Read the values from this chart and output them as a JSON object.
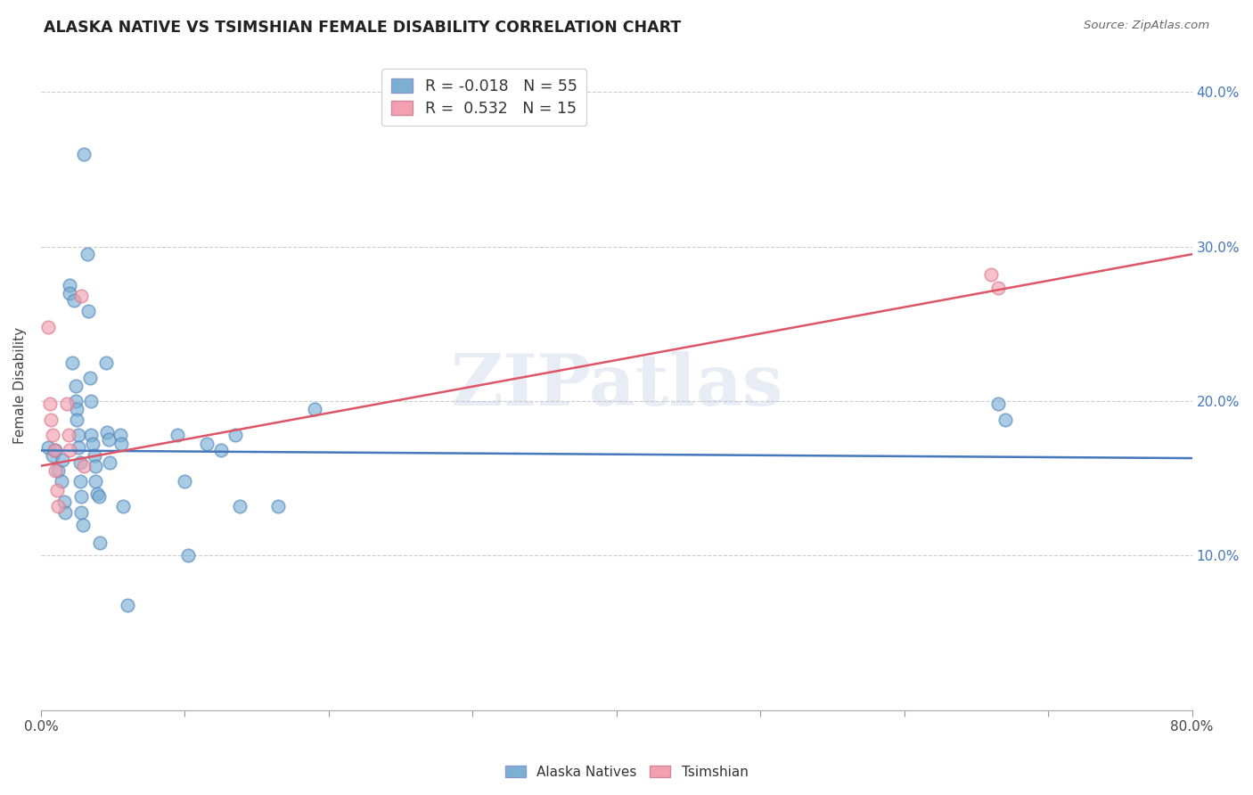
{
  "title": "ALASKA NATIVE VS TSIMSHIAN FEMALE DISABILITY CORRELATION CHART",
  "source": "Source: ZipAtlas.com",
  "ylabel": "Female Disability",
  "x_min": 0.0,
  "x_max": 0.8,
  "y_min": 0.0,
  "y_max": 0.42,
  "watermark": "ZIPatlas",
  "blue_color": "#7BAFD4",
  "pink_color": "#F4A0B0",
  "blue_edge_color": "#5588BB",
  "pink_edge_color": "#DD7788",
  "blue_line_color": "#4477BB",
  "pink_line_color": "#DD5566",
  "blue_scatter": [
    [
      0.005,
      0.17
    ],
    [
      0.008,
      0.165
    ],
    [
      0.01,
      0.168
    ],
    [
      0.012,
      0.155
    ],
    [
      0.014,
      0.148
    ],
    [
      0.015,
      0.162
    ],
    [
      0.016,
      0.135
    ],
    [
      0.017,
      0.128
    ],
    [
      0.02,
      0.275
    ],
    [
      0.02,
      0.27
    ],
    [
      0.022,
      0.225
    ],
    [
      0.023,
      0.265
    ],
    [
      0.024,
      0.21
    ],
    [
      0.024,
      0.2
    ],
    [
      0.025,
      0.195
    ],
    [
      0.025,
      0.188
    ],
    [
      0.026,
      0.178
    ],
    [
      0.026,
      0.17
    ],
    [
      0.027,
      0.16
    ],
    [
      0.027,
      0.148
    ],
    [
      0.028,
      0.138
    ],
    [
      0.028,
      0.128
    ],
    [
      0.029,
      0.12
    ],
    [
      0.03,
      0.36
    ],
    [
      0.032,
      0.295
    ],
    [
      0.033,
      0.258
    ],
    [
      0.034,
      0.215
    ],
    [
      0.035,
      0.2
    ],
    [
      0.035,
      0.178
    ],
    [
      0.036,
      0.172
    ],
    [
      0.037,
      0.165
    ],
    [
      0.038,
      0.158
    ],
    [
      0.038,
      0.148
    ],
    [
      0.039,
      0.14
    ],
    [
      0.04,
      0.138
    ],
    [
      0.041,
      0.108
    ],
    [
      0.045,
      0.225
    ],
    [
      0.046,
      0.18
    ],
    [
      0.047,
      0.175
    ],
    [
      0.048,
      0.16
    ],
    [
      0.055,
      0.178
    ],
    [
      0.056,
      0.172
    ],
    [
      0.057,
      0.132
    ],
    [
      0.06,
      0.068
    ],
    [
      0.095,
      0.178
    ],
    [
      0.1,
      0.148
    ],
    [
      0.102,
      0.1
    ],
    [
      0.115,
      0.172
    ],
    [
      0.125,
      0.168
    ],
    [
      0.135,
      0.178
    ],
    [
      0.138,
      0.132
    ],
    [
      0.165,
      0.132
    ],
    [
      0.19,
      0.195
    ],
    [
      0.665,
      0.198
    ],
    [
      0.67,
      0.188
    ]
  ],
  "pink_scatter": [
    [
      0.005,
      0.248
    ],
    [
      0.006,
      0.198
    ],
    [
      0.007,
      0.188
    ],
    [
      0.008,
      0.178
    ],
    [
      0.009,
      0.168
    ],
    [
      0.01,
      0.155
    ],
    [
      0.011,
      0.142
    ],
    [
      0.012,
      0.132
    ],
    [
      0.018,
      0.198
    ],
    [
      0.019,
      0.178
    ],
    [
      0.02,
      0.168
    ],
    [
      0.028,
      0.268
    ],
    [
      0.03,
      0.158
    ],
    [
      0.66,
      0.282
    ],
    [
      0.665,
      0.273
    ]
  ],
  "blue_line_x0": 0.0,
  "blue_line_y0": 0.168,
  "blue_line_x1": 0.8,
  "blue_line_y1": 0.163,
  "pink_line_x0": 0.0,
  "pink_line_y0": 0.158,
  "pink_line_x1": 0.8,
  "pink_line_y1": 0.295
}
